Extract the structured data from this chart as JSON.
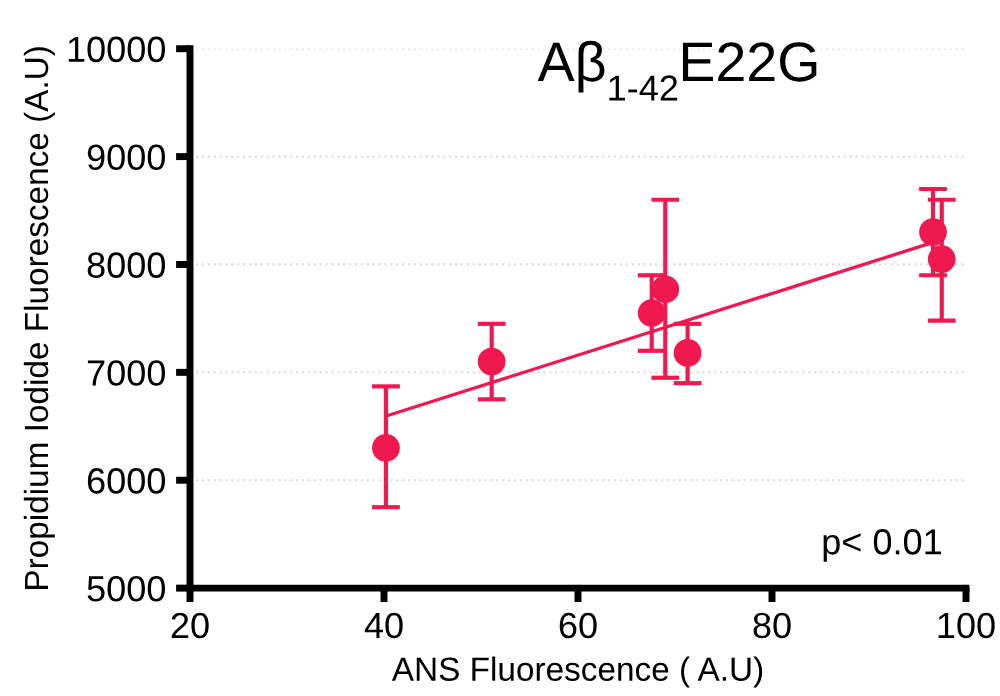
{
  "chart_data": {
    "type": "scatter",
    "title": "Aβ$_{1-42}$E22G",
    "xlabel": "ANS Fluorescence ( A.U)",
    "ylabel": "Propidium Iodide Fluorescence (A.U)",
    "xlim": [
      20,
      100
    ],
    "xticks": [
      20,
      40,
      60,
      80,
      100
    ],
    "ylim": [
      5000,
      10000
    ],
    "yticks": [
      5000,
      6000,
      7000,
      8000,
      9000,
      10000
    ],
    "grid": "y",
    "marker": "circle",
    "legend": false,
    "annotations": [
      "p< 0.01"
    ],
    "series": [
      {
        "color": "#f0194f",
        "x": [
          40.2,
          51.1,
          67.6,
          69.0,
          71.3,
          96.6,
          97.5
        ],
        "values": [
          6300,
          7100,
          7550,
          7770,
          7180,
          8300,
          8050
        ],
        "errors": [
          [
            5750,
            6870
          ],
          [
            6750,
            7450
          ],
          [
            7200,
            7900
          ],
          [
            6950,
            8600
          ],
          [
            6900,
            7450
          ],
          [
            7900,
            8700
          ],
          [
            7480,
            8600
          ]
        ]
      },
      {
        "type": "line",
        "color": "#f0194f",
        "x": [
          40.4,
          97.5
        ],
        "values": [
          6600,
          8230
        ],
        "marker": "none"
      }
    ]
  }
}
